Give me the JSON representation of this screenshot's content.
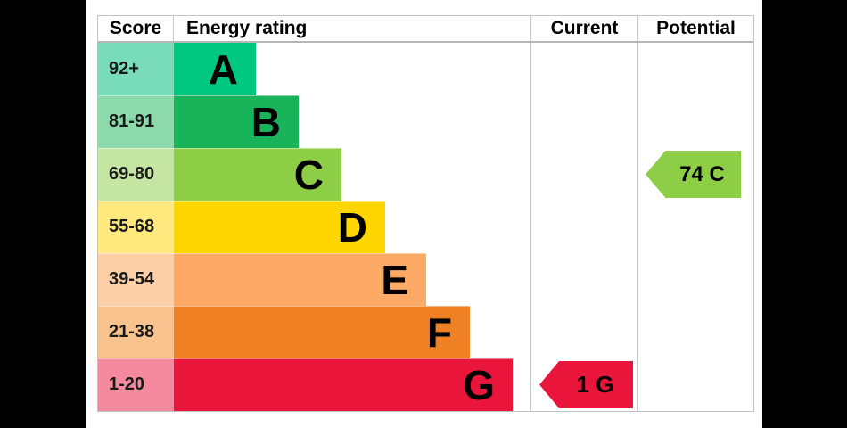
{
  "colors": {
    "canvas_background": "#000000",
    "panel_background": "#ffffff",
    "table_border": "#c3c3c3",
    "text": "#000000"
  },
  "header": {
    "score": "Score",
    "energy_rating": "Energy rating",
    "current": "Current",
    "potential": "Potential"
  },
  "bands": [
    {
      "score": "92+",
      "letter": "A",
      "color": "#00c781",
      "tint": "#79ddbc",
      "width_pct": 23
    },
    {
      "score": "81-91",
      "letter": "B",
      "color": "#19b459",
      "tint": "#8cd9ac",
      "width_pct": 35
    },
    {
      "score": "69-80",
      "letter": "C",
      "color": "#8dce46",
      "tint": "#c5e6a2",
      "width_pct": 47
    },
    {
      "score": "55-68",
      "letter": "D",
      "color": "#ffd500",
      "tint": "#ffe87d",
      "width_pct": 59.25
    },
    {
      "score": "39-54",
      "letter": "E",
      "color": "#fcaa65",
      "tint": "#fccfa6",
      "width_pct": 70.75
    },
    {
      "score": "21-38",
      "letter": "F",
      "color": "#ef8023",
      "tint": "#f7c28e",
      "width_pct": 83
    },
    {
      "score": "1-20",
      "letter": "G",
      "color": "#e9153b",
      "tint": "#f58a9e",
      "width_pct": 95
    }
  ],
  "current": {
    "label": "1 G",
    "value": 1,
    "band": "G",
    "color": "#e9153b",
    "row_index": 6
  },
  "potential": {
    "label": "74 C",
    "value": 74,
    "band": "C",
    "color": "#8dce46",
    "row_index": 2
  },
  "chart_data": {
    "type": "bar",
    "title": "Energy rating",
    "columns": [
      "Score",
      "Energy rating",
      "Current",
      "Potential"
    ],
    "categories": [
      "A",
      "B",
      "C",
      "D",
      "E",
      "F",
      "G"
    ],
    "score_ranges": [
      "92+",
      "81-91",
      "69-80",
      "55-68",
      "39-54",
      "21-38",
      "1-20"
    ],
    "bar_widths_pct": [
      23,
      35,
      47,
      59.25,
      70.75,
      83,
      95
    ],
    "bar_colors": [
      "#00c781",
      "#19b459",
      "#8dce46",
      "#ffd500",
      "#fcaa65",
      "#ef8023",
      "#e9153b"
    ],
    "score_cell_colors": [
      "#79ddbc",
      "#8cd9ac",
      "#c5e6a2",
      "#ffe87d",
      "#fccfa6",
      "#f7c28e",
      "#f58a9e"
    ],
    "current_rating": {
      "score": 1,
      "band": "G",
      "arrow_color": "#e9153b"
    },
    "potential_rating": {
      "score": 74,
      "band": "C",
      "arrow_color": "#8dce46"
    },
    "legend_position": "none",
    "grid": false
  }
}
